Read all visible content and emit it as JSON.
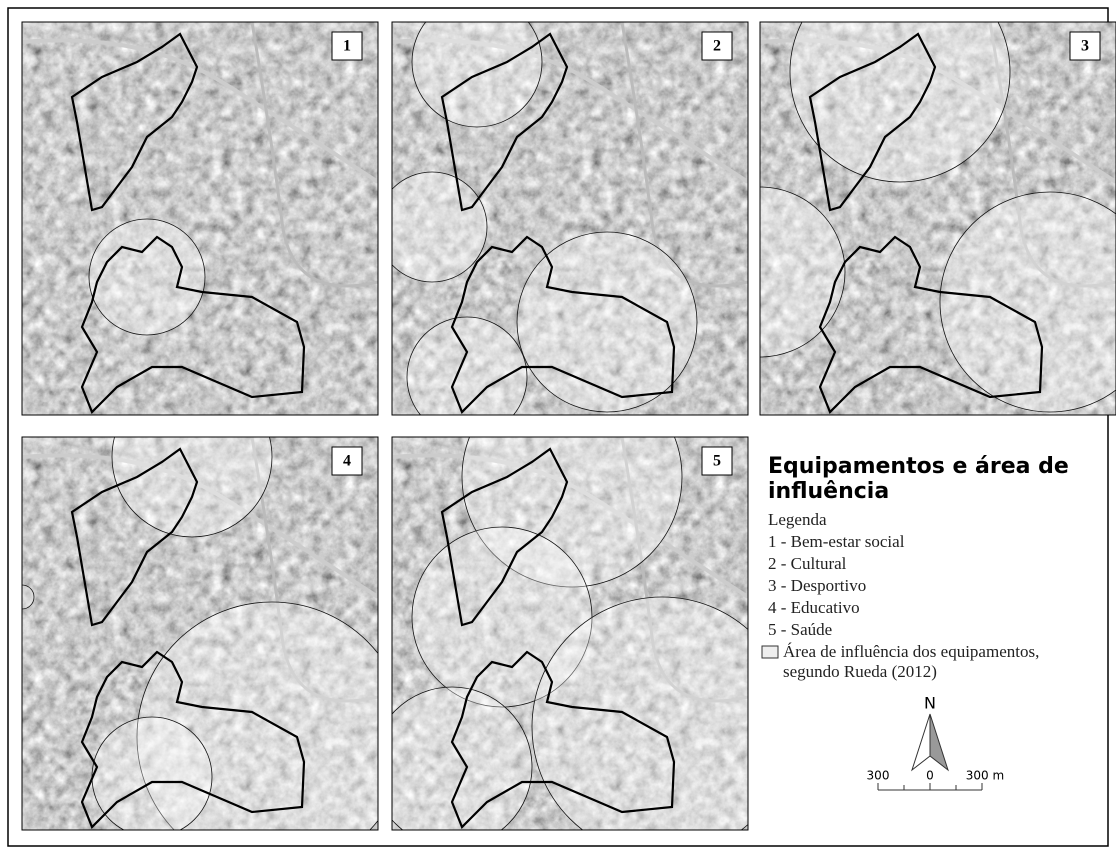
{
  "panels": [
    {
      "label": "1"
    },
    {
      "label": "2"
    },
    {
      "label": "3"
    },
    {
      "label": "4"
    },
    {
      "label": "5"
    }
  ],
  "legend": {
    "title_lines": [
      "Equipamentos e área de",
      "influência"
    ],
    "heading": "Legenda",
    "items": [
      "1 - Bem-estar social",
      "2 - Cultural",
      "3 - Desportivo",
      "4 - Educativo",
      "5 - Saúde"
    ],
    "area_label": [
      "Área de influência dos equipamentos,",
      "segundo Rueda (2012)"
    ]
  },
  "north": "N",
  "scale": {
    "labels": [
      "300",
      "0",
      "300 m"
    ]
  }
}
